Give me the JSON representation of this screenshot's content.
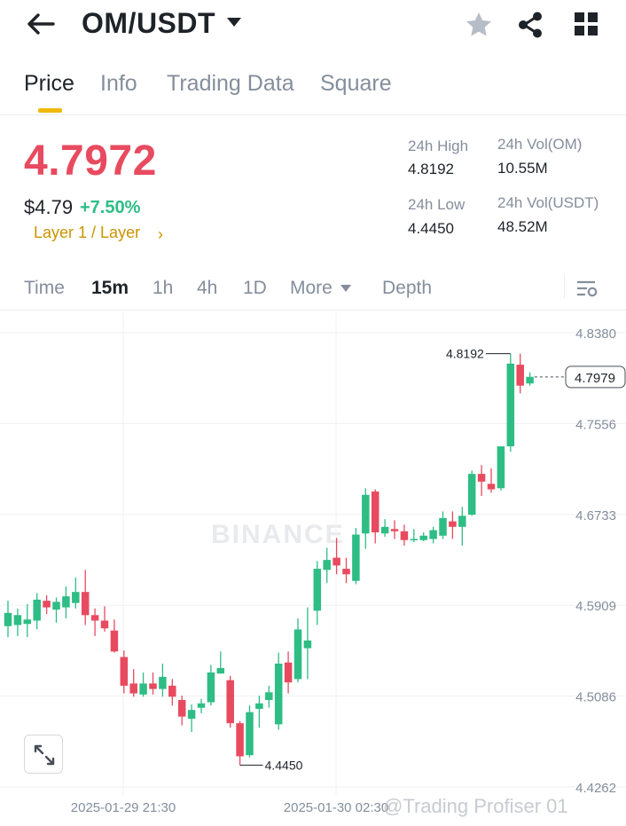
{
  "header": {
    "pair": "OM/USDT",
    "icons": [
      "back-arrow-icon",
      "caret-down-icon",
      "star-icon",
      "share-icon",
      "grid-icon"
    ]
  },
  "tabs": [
    {
      "label": "Price",
      "active": true
    },
    {
      "label": "Info",
      "active": false
    },
    {
      "label": "Trading Data",
      "active": false
    },
    {
      "label": "Square",
      "active": false
    }
  ],
  "ticker": {
    "last_price": "4.7972",
    "usd_price": "$4.79",
    "change_pct": "+7.50%",
    "tags": "Layer 1 / Layer",
    "high_label": "24h High",
    "high_value": "4.8192",
    "low_label": "24h Low",
    "low_value": "4.4450",
    "vol_base_label": "24h Vol(OM)",
    "vol_base_value": "10.55M",
    "vol_quote_label": "24h Vol(USDT)",
    "vol_quote_value": "48.52M"
  },
  "intervals": {
    "items": [
      "Time",
      "15m",
      "1h",
      "4h",
      "1D",
      "More",
      "Depth"
    ],
    "active": "15m"
  },
  "chart_data": {
    "type": "candlestick",
    "y_ticks": [
      "4.8380",
      "4.7556",
      "4.6733",
      "4.5909",
      "4.5086",
      "4.4262"
    ],
    "ylim": [
      4.4262,
      4.838
    ],
    "x_ticks": [
      "2025-01-29 21:30",
      "2025-01-30 02:30"
    ],
    "current_price_label": "4.7979",
    "high_marker": "4.8192",
    "low_marker": "4.4450",
    "colors": {
      "up": "#2ebd85",
      "down": "#e84a5f"
    },
    "candles": [
      {
        "o": 4.572,
        "h": 4.595,
        "l": 4.562,
        "c": 4.584
      },
      {
        "o": 4.573,
        "h": 4.588,
        "l": 4.563,
        "c": 4.582
      },
      {
        "o": 4.574,
        "h": 4.592,
        "l": 4.562,
        "c": 4.578
      },
      {
        "o": 4.577,
        "h": 4.602,
        "l": 4.569,
        "c": 4.596
      },
      {
        "o": 4.595,
        "h": 4.6,
        "l": 4.583,
        "c": 4.589
      },
      {
        "o": 4.587,
        "h": 4.598,
        "l": 4.575,
        "c": 4.594
      },
      {
        "o": 4.589,
        "h": 4.608,
        "l": 4.579,
        "c": 4.599
      },
      {
        "o": 4.593,
        "h": 4.616,
        "l": 4.588,
        "c": 4.603
      },
      {
        "o": 4.603,
        "h": 4.623,
        "l": 4.573,
        "c": 4.582
      },
      {
        "o": 4.582,
        "h": 4.588,
        "l": 4.563,
        "c": 4.577
      },
      {
        "o": 4.577,
        "h": 4.59,
        "l": 4.567,
        "c": 4.57
      },
      {
        "o": 4.568,
        "h": 4.578,
        "l": 4.548,
        "c": 4.549
      },
      {
        "o": 4.544,
        "h": 4.55,
        "l": 4.511,
        "c": 4.518
      },
      {
        "o": 4.52,
        "h": 4.533,
        "l": 4.508,
        "c": 4.511
      },
      {
        "o": 4.51,
        "h": 4.53,
        "l": 4.508,
        "c": 4.52
      },
      {
        "o": 4.52,
        "h": 4.53,
        "l": 4.51,
        "c": 4.515
      },
      {
        "o": 4.515,
        "h": 4.538,
        "l": 4.508,
        "c": 4.526
      },
      {
        "o": 4.518,
        "h": 4.524,
        "l": 4.5,
        "c": 4.508
      },
      {
        "o": 4.505,
        "h": 4.509,
        "l": 4.482,
        "c": 4.49
      },
      {
        "o": 4.488,
        "h": 4.501,
        "l": 4.476,
        "c": 4.496
      },
      {
        "o": 4.498,
        "h": 4.506,
        "l": 4.493,
        "c": 4.502
      },
      {
        "o": 4.503,
        "h": 4.537,
        "l": 4.5,
        "c": 4.53
      },
      {
        "o": 4.529,
        "h": 4.549,
        "l": 4.529,
        "c": 4.534
      },
      {
        "o": 4.523,
        "h": 4.527,
        "l": 4.48,
        "c": 4.484
      },
      {
        "o": 4.484,
        "h": 4.486,
        "l": 4.446,
        "c": 4.454
      },
      {
        "o": 4.455,
        "h": 4.5,
        "l": 4.453,
        "c": 4.494
      },
      {
        "o": 4.497,
        "h": 4.509,
        "l": 4.48,
        "c": 4.502
      },
      {
        "o": 4.505,
        "h": 4.518,
        "l": 4.498,
        "c": 4.512
      },
      {
        "o": 4.483,
        "h": 4.548,
        "l": 4.478,
        "c": 4.538
      },
      {
        "o": 4.539,
        "h": 4.549,
        "l": 4.511,
        "c": 4.521
      },
      {
        "o": 4.524,
        "h": 4.579,
        "l": 4.521,
        "c": 4.569
      },
      {
        "o": 4.552,
        "h": 4.589,
        "l": 4.524,
        "c": 4.559
      },
      {
        "o": 4.586,
        "h": 4.631,
        "l": 4.573,
        "c": 4.624
      },
      {
        "o": 4.623,
        "h": 4.643,
        "l": 4.611,
        "c": 4.632
      },
      {
        "o": 4.634,
        "h": 4.652,
        "l": 4.619,
        "c": 4.627
      },
      {
        "o": 4.624,
        "h": 4.634,
        "l": 4.611,
        "c": 4.619
      },
      {
        "o": 4.613,
        "h": 4.661,
        "l": 4.61,
        "c": 4.655
      },
      {
        "o": 4.656,
        "h": 4.697,
        "l": 4.642,
        "c": 4.691
      },
      {
        "o": 4.694,
        "h": 4.696,
        "l": 4.647,
        "c": 4.657
      },
      {
        "o": 4.656,
        "h": 4.669,
        "l": 4.653,
        "c": 4.662
      },
      {
        "o": 4.66,
        "h": 4.668,
        "l": 4.651,
        "c": 4.658
      },
      {
        "o": 4.658,
        "h": 4.664,
        "l": 4.645,
        "c": 4.65
      },
      {
        "o": 4.651,
        "h": 4.66,
        "l": 4.648,
        "c": 4.651
      },
      {
        "o": 4.65,
        "h": 4.657,
        "l": 4.649,
        "c": 4.654
      },
      {
        "o": 4.651,
        "h": 4.662,
        "l": 4.647,
        "c": 4.659
      },
      {
        "o": 4.654,
        "h": 4.676,
        "l": 4.651,
        "c": 4.67
      },
      {
        "o": 4.667,
        "h": 4.676,
        "l": 4.651,
        "c": 4.662
      },
      {
        "o": 4.662,
        "h": 4.68,
        "l": 4.645,
        "c": 4.672
      },
      {
        "o": 4.673,
        "h": 4.713,
        "l": 4.672,
        "c": 4.71
      },
      {
        "o": 4.71,
        "h": 4.718,
        "l": 4.69,
        "c": 4.703
      },
      {
        "o": 4.701,
        "h": 4.715,
        "l": 4.693,
        "c": 4.696
      },
      {
        "o": 4.697,
        "h": 4.733,
        "l": 4.695,
        "c": 4.735
      },
      {
        "o": 4.735,
        "h": 4.819,
        "l": 4.73,
        "c": 4.81
      },
      {
        "o": 4.809,
        "h": 4.819,
        "l": 4.783,
        "c": 4.79
      },
      {
        "o": 4.792,
        "h": 4.802,
        "l": 4.79,
        "c": 4.798
      }
    ]
  },
  "overlays": {
    "watermark": "BINANCE",
    "credit": "@Trading Profiser 01"
  }
}
